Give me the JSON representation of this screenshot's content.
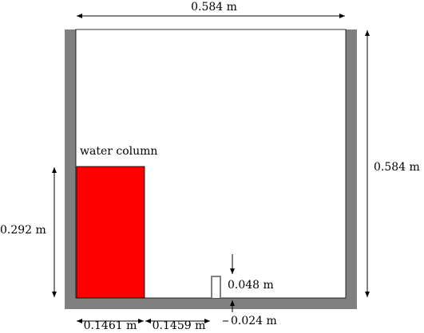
{
  "labels": {
    "top_width": "0.584 m",
    "right_height": "0.584 m",
    "water_label": "water column",
    "water_height": "0.292 m",
    "obstacle_height": "0.048 m",
    "water_width": "0.1461 m",
    "gap_width": "0.1459 m",
    "obstacle_width": "0.024 m"
  }
}
